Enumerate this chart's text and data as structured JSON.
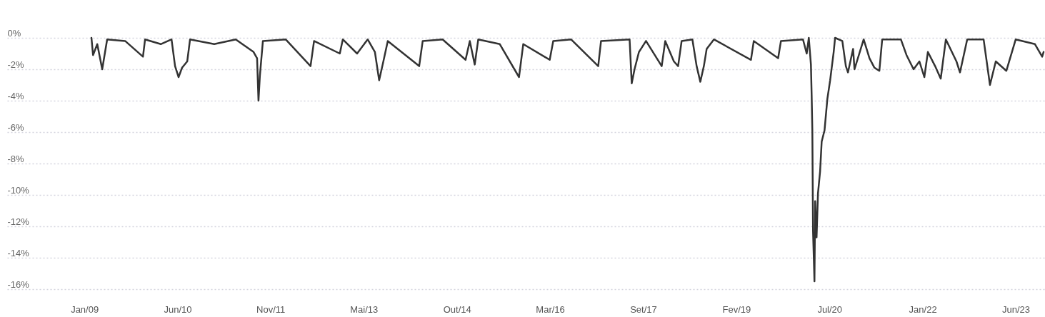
{
  "chart_data": {
    "type": "line",
    "x": [
      "2009-02-10",
      "2009-02-19",
      "2009-03-15",
      "2009-04-12",
      "2009-05-10",
      "2009-08-20",
      "2009-11-29",
      "2009-12-11",
      "2010-03-10",
      "2010-05-10",
      "2010-05-30",
      "2010-06-19",
      "2010-07-09",
      "2010-08-07",
      "2010-08-23",
      "2011-01-07",
      "2011-05-09",
      "2011-08-18",
      "2011-09-07",
      "2011-09-15",
      "2011-09-23",
      "2011-10-10",
      "2012-02-16",
      "2012-07-06",
      "2012-07-26",
      "2012-12-19",
      "2013-01-05",
      "2013-03-27",
      "2013-05-26",
      "2013-07-06",
      "2013-07-30",
      "2013-08-23",
      "2013-09-17",
      "2014-03-14",
      "2014-04-03",
      "2014-07-25",
      "2014-12-02",
      "2014-12-26",
      "2015-01-23",
      "2015-02-12",
      "2015-06-14",
      "2015-10-01",
      "2015-10-25",
      "2016-03-23",
      "2016-04-12",
      "2016-07-22",
      "2016-12-23",
      "2017-01-08",
      "2017-06-19",
      "2017-07-01",
      "2017-07-17",
      "2017-08-11",
      "2017-09-20",
      "2017-12-18",
      "2018-01-07",
      "2018-02-25",
      "2018-03-21",
      "2018-04-10",
      "2018-06-10",
      "2018-07-04",
      "2018-07-25",
      "2018-08-14",
      "2018-08-30",
      "2018-10-10",
      "2019-05-08",
      "2019-05-24",
      "2019-10-09",
      "2019-10-25",
      "2020-02-27",
      "2020-03-19",
      "2020-03-31",
      "2020-04-12",
      "2020-04-16",
      "2020-04-20",
      "2020-04-24",
      "2020-05-02",
      "2020-05-06",
      "2020-05-14",
      "2020-05-22",
      "2020-06-03",
      "2020-06-12",
      "2020-06-28",
      "2020-07-14",
      "2020-07-30",
      "2020-08-19",
      "2020-08-27",
      "2020-10-07",
      "2020-10-27",
      "2020-11-08",
      "2020-12-07",
      "2020-12-15",
      "2021-02-05",
      "2021-03-10",
      "2021-04-07",
      "2021-05-05",
      "2021-05-21",
      "2021-09-04",
      "2021-10-06",
      "2021-11-15",
      "2021-12-18",
      "2022-01-15",
      "2022-02-04",
      "2022-03-17",
      "2022-04-18",
      "2022-05-17",
      "2022-07-16",
      "2022-08-05",
      "2022-09-15",
      "2022-12-17",
      "2023-01-22",
      "2023-02-24",
      "2023-04-25",
      "2023-06-17",
      "2023-10-04",
      "2023-11-14",
      "2023-11-22"
    ],
    "series": [
      {
        "color": "#333333",
        "values": [
          0,
          -1.1,
          -0.4,
          -2.0,
          -0.1,
          -0.2,
          -1.2,
          -0.1,
          -0.4,
          -0.1,
          -1.8,
          -2.5,
          -1.9,
          -1.5,
          -0.1,
          -0.4,
          -0.1,
          -0.9,
          -1.3,
          -4.0,
          -2.4,
          -0.2,
          -0.1,
          -1.8,
          -0.2,
          -1.0,
          -0.1,
          -1.0,
          -0.1,
          -0.9,
          -2.7,
          -1.5,
          -0.2,
          -1.8,
          -0.2,
          -0.1,
          -1.4,
          -0.2,
          -1.7,
          -0.1,
          -0.4,
          -2.5,
          -0.4,
          -1.4,
          -0.2,
          -0.1,
          -1.8,
          -0.2,
          -0.1,
          -2.9,
          -2.0,
          -0.9,
          -0.2,
          -1.8,
          -0.2,
          -1.5,
          -1.8,
          -0.2,
          -0.1,
          -1.8,
          -2.8,
          -1.8,
          -0.7,
          -0.1,
          -1.4,
          -0.2,
          -1.3,
          -0.2,
          -0.1,
          -1.0,
          0,
          -1.7,
          -3.6,
          -5.9,
          -12.3,
          -15.5,
          -10.4,
          -12.7,
          -9.9,
          -8.5,
          -6.6,
          -5.9,
          -3.9,
          -2.7,
          -0.9,
          0,
          -0.2,
          -1.8,
          -2.2,
          -0.7,
          -2.0,
          -0.1,
          -1.3,
          -1.9,
          -2.1,
          -0.1,
          -0.1,
          -1.1,
          -2.0,
          -1.5,
          -2.5,
          -0.9,
          -1.8,
          -2.6,
          -0.1,
          -1.5,
          -2.2,
          -0.1,
          -0.1,
          -3.0,
          -1.5,
          -2.1,
          -0.1,
          -0.4,
          -1.2,
          -0.9
        ]
      }
    ],
    "xlim": [
      "2007-10-21",
      "2023-11-26"
    ],
    "xticks": [
      {
        "value": "2009-01-01",
        "label": "Jan/09"
      },
      {
        "value": "2010-06-13",
        "label": "Jun/10"
      },
      {
        "value": "2011-11-22",
        "label": "Nov/11"
      },
      {
        "value": "2013-05-04",
        "label": "Mai/13"
      },
      {
        "value": "2014-10-14",
        "label": "Out/14"
      },
      {
        "value": "2016-03-25",
        "label": "Mar/16"
      },
      {
        "value": "2017-09-04",
        "label": "Set/17"
      },
      {
        "value": "2019-02-14",
        "label": "Fev/19"
      },
      {
        "value": "2020-07-26",
        "label": "Jul/20"
      },
      {
        "value": "2022-01-05",
        "label": "Jan/22"
      },
      {
        "value": "2023-06-17",
        "label": "Jun/23"
      }
    ],
    "ylim": [
      -16,
      0
    ],
    "yticks": [
      {
        "value": 0,
        "label": "0%"
      },
      {
        "value": -2,
        "label": "-2%"
      },
      {
        "value": -4,
        "label": "-4%"
      },
      {
        "value": -6,
        "label": "-6%"
      },
      {
        "value": -8,
        "label": "-8%"
      },
      {
        "value": -10,
        "label": "-10%"
      },
      {
        "value": -12,
        "label": "-12%"
      },
      {
        "value": -14,
        "label": "-14%"
      },
      {
        "value": -16,
        "label": "-16%"
      }
    ],
    "grid": "y"
  }
}
